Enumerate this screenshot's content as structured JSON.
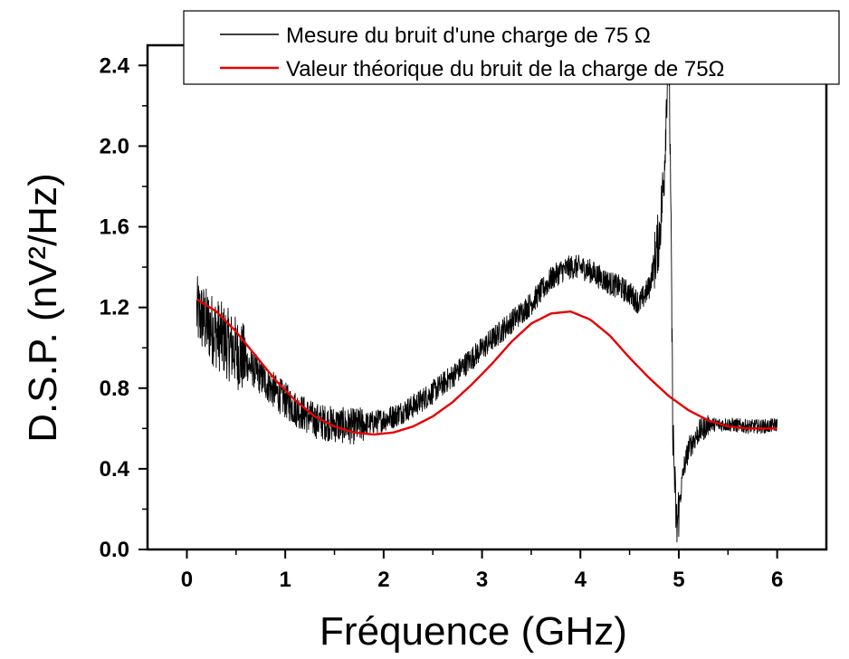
{
  "chart_data": {
    "type": "line",
    "xlabel": "Fréquence (GHz)",
    "ylabel": "D.S.P. (nV²/Hz)",
    "xlim": [
      -0.4,
      6.5
    ],
    "ylim": [
      0.0,
      2.5
    ],
    "x_ticks": [
      0,
      1,
      2,
      3,
      4,
      5,
      6
    ],
    "x_tick_labels": [
      "0",
      "1",
      "2",
      "3",
      "4",
      "5",
      "6"
    ],
    "y_ticks": [
      0.0,
      0.4,
      0.8,
      1.2,
      1.6,
      2.0,
      2.4
    ],
    "y_tick_labels": [
      "0.0",
      "0.4",
      "0.8",
      "1.2",
      "1.6",
      "2.0",
      "2.4"
    ],
    "legend_position": "top-right",
    "series": [
      {
        "name": "Mesure du bruit d'une charge de 75 Ω",
        "color": "#000000",
        "style": "noisy",
        "x": [
          0.1,
          0.2,
          0.35,
          0.5,
          0.7,
          0.9,
          1.1,
          1.3,
          1.5,
          1.7,
          1.9,
          2.1,
          2.3,
          2.5,
          2.7,
          2.9,
          3.1,
          3.3,
          3.5,
          3.6,
          3.7,
          3.8,
          3.9,
          4.0,
          4.1,
          4.2,
          4.3,
          4.4,
          4.5,
          4.6,
          4.7,
          4.8,
          4.85,
          4.88,
          4.9,
          4.92,
          4.94,
          4.96,
          4.98,
          5.0,
          5.05,
          5.1,
          5.2,
          5.3,
          5.5,
          5.7,
          5.9,
          6.0
        ],
        "y": [
          1.18,
          1.12,
          1.05,
          0.98,
          0.88,
          0.78,
          0.7,
          0.64,
          0.62,
          0.61,
          0.63,
          0.66,
          0.71,
          0.78,
          0.86,
          0.95,
          1.04,
          1.13,
          1.22,
          1.28,
          1.34,
          1.38,
          1.4,
          1.4,
          1.38,
          1.35,
          1.32,
          1.3,
          1.27,
          1.22,
          1.3,
          1.55,
          1.85,
          2.3,
          2.5,
          1.6,
          0.6,
          0.3,
          0.1,
          0.2,
          0.4,
          0.5,
          0.58,
          0.62,
          0.62,
          0.61,
          0.61,
          0.62
        ]
      },
      {
        "name": "Valeur théorique du bruit de la charge de 75Ω",
        "color": "#e60000",
        "style": "smooth",
        "x": [
          0.1,
          0.3,
          0.5,
          0.7,
          0.9,
          1.1,
          1.3,
          1.5,
          1.7,
          1.9,
          2.1,
          2.3,
          2.5,
          2.7,
          2.9,
          3.1,
          3.3,
          3.5,
          3.7,
          3.9,
          4.1,
          4.3,
          4.5,
          4.7,
          4.9,
          5.1,
          5.3,
          5.5,
          5.7,
          6.0
        ],
        "y": [
          1.24,
          1.18,
          1.08,
          0.96,
          0.84,
          0.74,
          0.66,
          0.61,
          0.58,
          0.57,
          0.58,
          0.61,
          0.66,
          0.73,
          0.82,
          0.92,
          1.03,
          1.12,
          1.17,
          1.18,
          1.14,
          1.06,
          0.95,
          0.85,
          0.76,
          0.69,
          0.64,
          0.61,
          0.6,
          0.6
        ]
      }
    ]
  }
}
